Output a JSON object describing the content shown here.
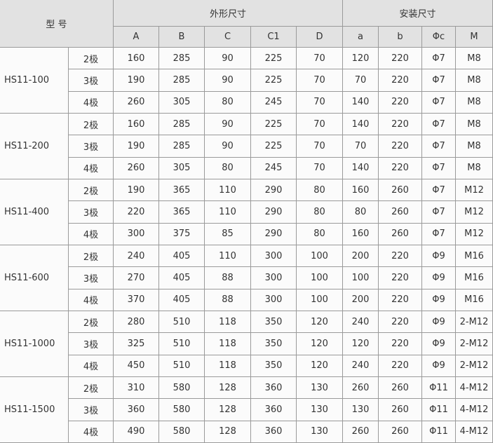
{
  "header": {
    "model": "型 号",
    "group1": "外形尺寸",
    "group2": "安装尺寸",
    "columns": [
      "A",
      "B",
      "C",
      "C1",
      "D",
      "a",
      "b",
      "Φc",
      "M"
    ]
  },
  "groups": [
    {
      "model": "HS11-100",
      "rows": [
        {
          "pole": "2极",
          "cells": [
            160,
            285,
            90,
            225,
            70,
            120,
            220,
            "Φ7",
            "M8"
          ]
        },
        {
          "pole": "3极",
          "cells": [
            190,
            285,
            90,
            225,
            70,
            70,
            220,
            "Φ7",
            "M8"
          ]
        },
        {
          "pole": "4极",
          "cells": [
            260,
            305,
            80,
            245,
            70,
            140,
            220,
            "Φ7",
            "M8"
          ]
        }
      ]
    },
    {
      "model": "HS11-200",
      "rows": [
        {
          "pole": "2极",
          "cells": [
            160,
            285,
            90,
            225,
            70,
            140,
            220,
            "Φ7",
            "M8"
          ]
        },
        {
          "pole": "3极",
          "cells": [
            190,
            285,
            90,
            225,
            70,
            70,
            220,
            "Φ7",
            "M8"
          ]
        },
        {
          "pole": "4极",
          "cells": [
            260,
            305,
            80,
            245,
            70,
            140,
            220,
            "Φ7",
            "M8"
          ]
        }
      ]
    },
    {
      "model": "HS11-400",
      "rows": [
        {
          "pole": "2极",
          "cells": [
            190,
            365,
            110,
            290,
            80,
            160,
            260,
            "Φ7",
            "M12"
          ]
        },
        {
          "pole": "3极",
          "cells": [
            220,
            365,
            110,
            290,
            80,
            80,
            260,
            "Φ7",
            "M12"
          ]
        },
        {
          "pole": "4极",
          "cells": [
            300,
            375,
            85,
            290,
            80,
            160,
            260,
            "Φ7",
            "M12"
          ]
        }
      ]
    },
    {
      "model": "HS11-600",
      "rows": [
        {
          "pole": "2极",
          "cells": [
            240,
            405,
            110,
            300,
            100,
            200,
            220,
            "Φ9",
            "M16"
          ]
        },
        {
          "pole": "3极",
          "cells": [
            270,
            405,
            88,
            300,
            100,
            100,
            220,
            "Φ9",
            "M16"
          ]
        },
        {
          "pole": "4极",
          "cells": [
            370,
            405,
            88,
            300,
            100,
            200,
            220,
            "Φ9",
            "M16"
          ]
        }
      ]
    },
    {
      "model": "HS11-1000",
      "rows": [
        {
          "pole": "2极",
          "cells": [
            280,
            510,
            118,
            350,
            120,
            240,
            220,
            "Φ9",
            "2-M12"
          ]
        },
        {
          "pole": "3极",
          "cells": [
            325,
            510,
            118,
            350,
            120,
            120,
            220,
            "Φ9",
            "2-M12"
          ]
        },
        {
          "pole": "4极",
          "cells": [
            450,
            510,
            118,
            350,
            120,
            240,
            220,
            "Φ9",
            "2-M12"
          ]
        }
      ]
    },
    {
      "model": "HS11-1500",
      "rows": [
        {
          "pole": "2极",
          "cells": [
            310,
            580,
            128,
            360,
            130,
            260,
            260,
            "Φ11",
            "4-M12"
          ]
        },
        {
          "pole": "3极",
          "cells": [
            360,
            580,
            128,
            360,
            130,
            130,
            260,
            "Φ11",
            "4-M12"
          ]
        },
        {
          "pole": "4极",
          "cells": [
            490,
            580,
            128,
            360,
            130,
            260,
            260,
            "Φ11",
            "4-M12"
          ]
        }
      ]
    }
  ]
}
